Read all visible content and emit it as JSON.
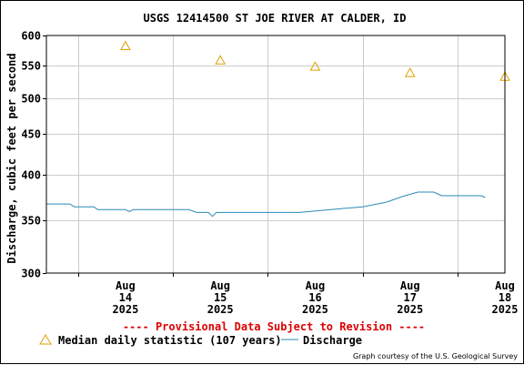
{
  "chart_data": {
    "type": "line",
    "title": "USGS 12414500 ST JOE RIVER AT CALDER, ID",
    "ylabel": "Discharge, cubic feet per second",
    "xlabel": "",
    "y_scale": "log",
    "ylim": [
      300,
      600
    ],
    "y_ticks": [
      300,
      350,
      400,
      450,
      500,
      550,
      600
    ],
    "y_tick_labels": [
      "300",
      "350",
      "400",
      "450",
      "500",
      "550",
      "600"
    ],
    "xlim": [
      "2025-08-13T16:00",
      "2025-08-18T12:00"
    ],
    "x_ticks": [
      {
        "date": "2025-08-14",
        "month": "Aug",
        "day": "14",
        "year": "2025"
      },
      {
        "date": "2025-08-15",
        "month": "Aug",
        "day": "15",
        "year": "2025"
      },
      {
        "date": "2025-08-16",
        "month": "Aug",
        "day": "16",
        "year": "2025"
      },
      {
        "date": "2025-08-17",
        "month": "Aug",
        "day": "17",
        "year": "2025"
      },
      {
        "date": "2025-08-18",
        "month": "Aug",
        "day": "18",
        "year": "2025"
      }
    ],
    "grid": true,
    "series": [
      {
        "name": "Median daily statistic (107 years)",
        "kind": "marker",
        "marker": "triangle",
        "color": "#e0a000",
        "points": [
          {
            "x": "2025-08-14",
            "y": 582
          },
          {
            "x": "2025-08-15",
            "y": 558
          },
          {
            "x": "2025-08-16",
            "y": 548
          },
          {
            "x": "2025-08-17",
            "y": 538
          },
          {
            "x": "2025-08-18",
            "y": 532
          }
        ]
      },
      {
        "name": "Discharge",
        "kind": "line",
        "color": "#2a8ab8",
        "points": [
          {
            "x": "2025-08-13T16:00",
            "y": 367
          },
          {
            "x": "2025-08-13T22:00",
            "y": 367
          },
          {
            "x": "2025-08-13T23:00",
            "y": 364
          },
          {
            "x": "2025-08-14T00:00",
            "y": 364
          },
          {
            "x": "2025-08-14T01:00",
            "y": 364
          },
          {
            "x": "2025-08-14T04:00",
            "y": 364
          },
          {
            "x": "2025-08-14T05:00",
            "y": 361
          },
          {
            "x": "2025-08-14T10:00",
            "y": 361
          },
          {
            "x": "2025-08-14T12:00",
            "y": 361
          },
          {
            "x": "2025-08-14T13:00",
            "y": 359
          },
          {
            "x": "2025-08-14T14:00",
            "y": 361
          },
          {
            "x": "2025-08-14T20:00",
            "y": 361
          },
          {
            "x": "2025-08-15T00:00",
            "y": 361
          },
          {
            "x": "2025-08-15T04:00",
            "y": 361
          },
          {
            "x": "2025-08-15T06:00",
            "y": 358
          },
          {
            "x": "2025-08-15T09:00",
            "y": 358
          },
          {
            "x": "2025-08-15T10:00",
            "y": 354
          },
          {
            "x": "2025-08-15T11:00",
            "y": 358
          },
          {
            "x": "2025-08-15T18:00",
            "y": 358
          },
          {
            "x": "2025-08-15T22:00",
            "y": 358
          },
          {
            "x": "2025-08-16T00:00",
            "y": 358
          },
          {
            "x": "2025-08-16T08:00",
            "y": 358
          },
          {
            "x": "2025-08-16T16:00",
            "y": 361
          },
          {
            "x": "2025-08-17T00:00",
            "y": 364
          },
          {
            "x": "2025-08-17T06:00",
            "y": 369
          },
          {
            "x": "2025-08-17T10:00",
            "y": 375
          },
          {
            "x": "2025-08-17T14:00",
            "y": 380
          },
          {
            "x": "2025-08-17T18:00",
            "y": 380
          },
          {
            "x": "2025-08-17T19:00",
            "y": 378
          },
          {
            "x": "2025-08-17T20:00",
            "y": 376
          },
          {
            "x": "2025-08-17T21:00",
            "y": 376
          },
          {
            "x": "2025-08-18T06:00",
            "y": 376
          },
          {
            "x": "2025-08-18T07:00",
            "y": 374
          }
        ]
      }
    ]
  },
  "provisional_note": "---- Provisional Data Subject to Revision ----",
  "legend": {
    "median_label": "Median daily statistic (107 years)",
    "discharge_label": "Discharge"
  },
  "credit": "Graph courtesy of the U.S. Geological Survey",
  "colors": {
    "grid": "#cccccc",
    "axis": "#000000",
    "provisional": "#dd0000",
    "median": "#e0a000",
    "discharge": "#2a8ab8"
  }
}
